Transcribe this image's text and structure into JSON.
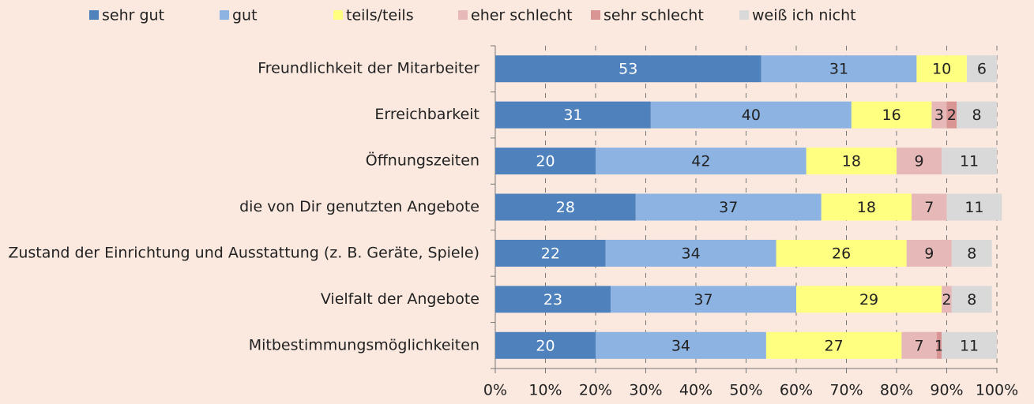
{
  "chart_data": {
    "type": "stacked-bar-horizontal",
    "categories": [
      "Freundlichkeit der Mitarbeiter",
      "Erreichbarkeit",
      "Öffnungszeiten",
      "die von Dir genutzten Angebote",
      "Zustand der Einrichtung und Ausstattung (z. B. Geräte, Spiele)",
      "Vielfalt der Angebote",
      "Mitbestimmungsmöglichkeiten"
    ],
    "series": [
      {
        "name": "sehr gut",
        "color": "#4f81bd",
        "values": [
          53,
          31,
          20,
          28,
          22,
          23,
          20
        ]
      },
      {
        "name": "gut",
        "color": "#8db3e2",
        "values": [
          31,
          40,
          42,
          37,
          34,
          37,
          34
        ]
      },
      {
        "name": "teils/teils",
        "color": "#ffff80",
        "values": [
          10,
          16,
          18,
          18,
          26,
          29,
          27
        ]
      },
      {
        "name": "eher schlecht",
        "color": "#e6b9b8",
        "values": [
          0,
          3,
          9,
          7,
          9,
          2,
          7
        ]
      },
      {
        "name": "sehr schlecht",
        "color": "#d99594",
        "values": [
          0,
          2,
          0,
          0,
          0,
          0,
          1
        ]
      },
      {
        "name": "weiß ich nicht",
        "color": "#d9d9d9",
        "values": [
          6,
          8,
          11,
          11,
          8,
          8,
          11
        ]
      }
    ],
    "xlim": [
      0,
      100
    ],
    "xticks": [
      {
        "value": 0,
        "label": "0%"
      },
      {
        "value": 10,
        "label": "10%"
      },
      {
        "value": 20,
        "label": "20%"
      },
      {
        "value": 30,
        "label": "30%"
      },
      {
        "value": 40,
        "label": "40%"
      },
      {
        "value": 50,
        "label": "50%"
      },
      {
        "value": 60,
        "label": "60%"
      },
      {
        "value": 70,
        "label": "70%"
      },
      {
        "value": 80,
        "label": "80%"
      },
      {
        "value": 90,
        "label": "90%"
      },
      {
        "value": 100,
        "label": "100%"
      }
    ],
    "grid": true,
    "legend": "top"
  }
}
